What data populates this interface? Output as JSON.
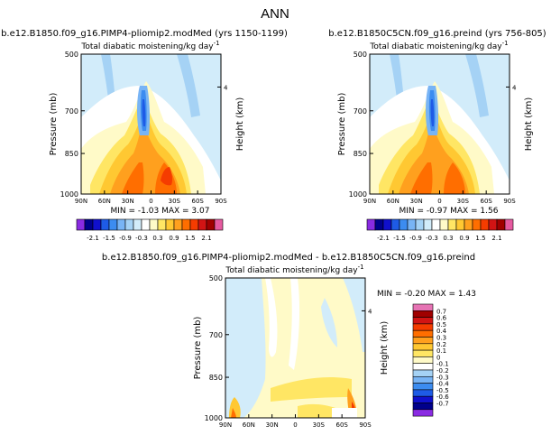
{
  "page_title": "ANN",
  "panels": [
    {
      "id": "pliomip",
      "case_title": "b.e12.B1850.f09_g16.PIMP4-pliomip2.modMed (yrs 1150-1199)",
      "var_title": "Total diabatic moistening/kg day",
      "var_sup": "-1",
      "ylabel_left": "Pressure (mb)",
      "ylabel_right": "Height (km)",
      "y_ticks": [
        "500",
        "700",
        "850",
        "1000"
      ],
      "height_tick": "4",
      "x_ticks": [
        "90N",
        "60N",
        "30N",
        "0",
        "30S",
        "60S",
        "90S"
      ],
      "stats": "MIN =  -1.03   MAX =  3.07"
    },
    {
      "id": "preind",
      "case_title": "b.e12.B1850C5CN.f09_g16.preind (yrs 756-805)",
      "var_title": "Total diabatic moistening/kg day",
      "var_sup": "-1",
      "ylabel_left": "Pressure (mb)",
      "ylabel_right": "Height (km)",
      "y_ticks": [
        "500",
        "700",
        "850",
        "1000"
      ],
      "height_tick": "4",
      "x_ticks": [
        "90N",
        "60N",
        "30N",
        "0",
        "30S",
        "60S",
        "90S"
      ],
      "stats": "MIN =  -0.97   MAX =  1.56"
    },
    {
      "id": "diff",
      "case_title": "b.e12.B1850.f09_g16.PIMP4-pliomip2.modMed - b.e12.B1850C5CN.f09_g16.preind",
      "var_title": "Total diabatic moistening/kg day",
      "var_sup": "-1",
      "ylabel_left": "Pressure (mb)",
      "ylabel_right": "Height (km)",
      "y_ticks": [
        "500",
        "700",
        "850",
        "1000"
      ],
      "height_tick": "4",
      "x_ticks": [
        "90N",
        "60N",
        "30N",
        "0",
        "30S",
        "60S",
        "90S"
      ],
      "stats": "MIN =  -0.20   MAX =    1.43"
    }
  ],
  "legend_horizontal": {
    "tick_labels": [
      "-2.1",
      "-1.5",
      "-0.9",
      "-0.3",
      "0.3",
      "0.9",
      "1.5",
      "2.1"
    ],
    "colors": [
      "#8a2be2",
      "#00008b",
      "#1010cd",
      "#1e5be6",
      "#3c8cf0",
      "#78b4f5",
      "#a5d2f5",
      "#d2ecfa",
      "#ffffff",
      "#fffac8",
      "#ffe664",
      "#ffc832",
      "#ffa01e",
      "#ff6e00",
      "#f53c00",
      "#d21414",
      "#a00000",
      "#e65aa0"
    ]
  },
  "legend_vertical": {
    "labels": [
      "0.7",
      "0.6",
      "0.5",
      "0.4",
      "0.3",
      "0.2",
      "0.1",
      "0",
      "-0.1",
      "-0.2",
      "-0.3",
      "-0.4",
      "-0.5",
      "-0.6",
      "-0.7"
    ],
    "colors": [
      "#e673b4",
      "#a00000",
      "#d21414",
      "#f53c00",
      "#ff6e00",
      "#ffa01e",
      "#ffc832",
      "#ffe664",
      "#fffac8",
      "#ffffff",
      "#a5d2f5",
      "#78b4f5",
      "#3c8cf0",
      "#1e5be6",
      "#1010cd",
      "#00008b",
      "#8a2be2"
    ]
  },
  "chart_data": [
    {
      "type": "heatmap",
      "title": "Total diabatic moistening/kg day-1",
      "xlabel": "",
      "ylabel": "Pressure (mb)",
      "x_ticks": [
        "90N",
        "60N",
        "30N",
        "0",
        "30S",
        "60S",
        "90S"
      ],
      "ylim": [
        1000,
        500
      ],
      "stats": {
        "min": -1.03,
        "max": 3.07
      },
      "features": [
        {
          "lat": 3,
          "p_range": [
            600,
            780
          ],
          "value": -0.9
        },
        {
          "lat": 18,
          "p_range": [
            650,
            1000
          ],
          "value": 1.5
        },
        {
          "lat": -20,
          "p_range": [
            700,
            1000
          ],
          "value": 1.5
        }
      ]
    },
    {
      "type": "heatmap",
      "title": "Total diabatic moistening/kg day-1",
      "xlabel": "",
      "ylabel": "Pressure (mb)",
      "x_ticks": [
        "90N",
        "60N",
        "30N",
        "0",
        "30S",
        "60S",
        "90S"
      ],
      "ylim": [
        1000,
        500
      ],
      "stats": {
        "min": -0.97,
        "max": 1.56
      }
    },
    {
      "type": "heatmap",
      "title": "Total diabatic moistening/kg day-1",
      "xlabel": "",
      "ylabel": "Pressure (mb)",
      "x_ticks": [
        "90N",
        "60N",
        "30N",
        "0",
        "30S",
        "60S",
        "90S"
      ],
      "ylim": [
        1000,
        500
      ],
      "stats": {
        "min": -0.2,
        "max": 1.43
      }
    }
  ]
}
